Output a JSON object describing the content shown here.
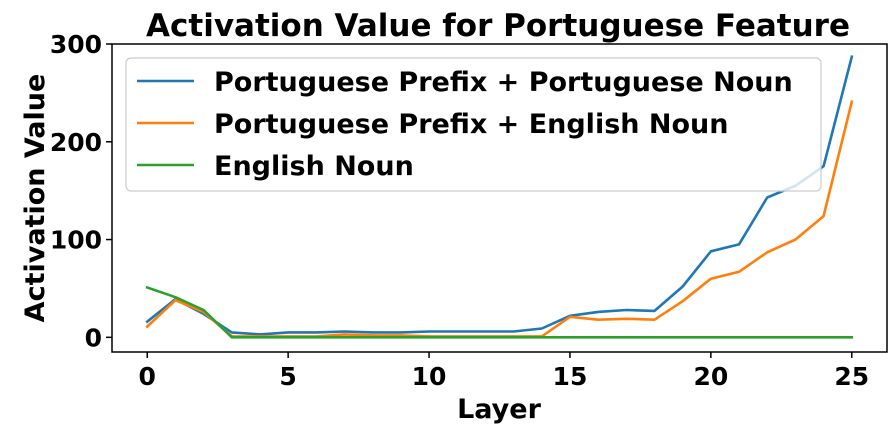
{
  "chart_data": {
    "type": "line",
    "title": "Activation Value for Portuguese Feature",
    "xlabel": "Layer",
    "ylabel": "Activation Value",
    "xlim": [
      -1.25,
      26.25
    ],
    "ylim": [
      -15,
      300
    ],
    "xticks": [
      0,
      5,
      10,
      15,
      20,
      25
    ],
    "yticks": [
      0,
      100,
      200,
      300
    ],
    "grid": false,
    "legend_position": "upper-left",
    "x": [
      0,
      1,
      2,
      3,
      4,
      5,
      6,
      7,
      8,
      9,
      10,
      11,
      12,
      13,
      14,
      15,
      16,
      17,
      18,
      19,
      20,
      21,
      22,
      23,
      24,
      25
    ],
    "series": [
      {
        "name": "Portuguese Prefix + Portuguese Noun",
        "color": "#1f77b4",
        "values": [
          16,
          39,
          24,
          5,
          3,
          5,
          5,
          6,
          5,
          5,
          6,
          6,
          6,
          6,
          9,
          22,
          26,
          28,
          27,
          52,
          88,
          95,
          143,
          155,
          175,
          287
        ]
      },
      {
        "name": "Portuguese Prefix + English Noun",
        "color": "#ff7f0e",
        "values": [
          11,
          38,
          26,
          1,
          1,
          1,
          1,
          3,
          2,
          2,
          1,
          1,
          1,
          1,
          1,
          21,
          18,
          19,
          18,
          37,
          60,
          67,
          87,
          100,
          124,
          241
        ]
      },
      {
        "name": "English Noun",
        "color": "#2ca02c",
        "values": [
          51,
          41,
          28,
          0,
          0,
          0,
          0,
          0,
          0,
          0,
          0,
          0,
          0,
          0,
          0,
          0,
          0,
          0,
          0,
          0,
          0,
          0,
          0,
          0,
          0,
          0
        ]
      }
    ]
  }
}
